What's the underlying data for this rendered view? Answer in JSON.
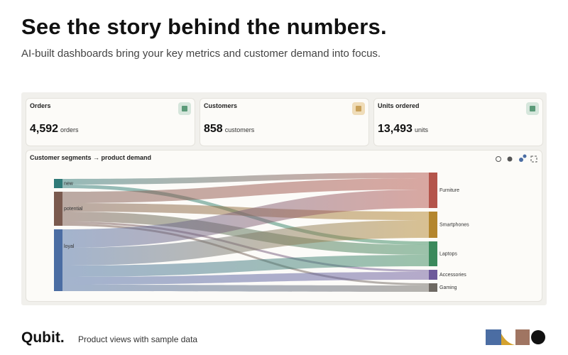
{
  "header": {
    "title": "See the story behind the numbers.",
    "subtitle": "AI-built dashboards bring your key metrics and customer demand into focus."
  },
  "metrics": [
    {
      "label": "Orders",
      "value": "4,592",
      "unit": "orders"
    },
    {
      "label": "Customers",
      "value": "858",
      "unit": "customers"
    },
    {
      "label": "Units ordered",
      "value": "13,493",
      "unit": "units"
    }
  ],
  "sankey": {
    "title": "Customer segments → product demand",
    "sources": [
      {
        "name": "new",
        "color": "#2f7a78"
      },
      {
        "name": "potential",
        "color": "#7a5a4f"
      },
      {
        "name": "loyal",
        "color": "#4b6da3"
      }
    ],
    "targets": [
      {
        "name": "Furniture",
        "color": "#b4544b"
      },
      {
        "name": "Smartphones",
        "color": "#b4862e"
      },
      {
        "name": "Laptops",
        "color": "#3b8a5d"
      },
      {
        "name": "Accessories",
        "color": "#6d5a9b"
      },
      {
        "name": "Gaming",
        "color": "#6e6963"
      }
    ],
    "links": [
      {
        "source": "new",
        "target": "Furniture",
        "value": 8
      },
      {
        "source": "new",
        "target": "Laptops",
        "value": 5
      },
      {
        "source": "potential",
        "target": "Furniture",
        "value": 16
      },
      {
        "source": "potential",
        "target": "Smartphones",
        "value": 12
      },
      {
        "source": "potential",
        "target": "Laptops",
        "value": 14
      },
      {
        "source": "potential",
        "target": "Accessories",
        "value": 3
      },
      {
        "source": "potential",
        "target": "Gaming",
        "value": 3
      },
      {
        "source": "loyal",
        "target": "Furniture",
        "value": 26
      },
      {
        "source": "loyal",
        "target": "Smartphones",
        "value": 25
      },
      {
        "source": "loyal",
        "target": "Laptops",
        "value": 16
      },
      {
        "source": "loyal",
        "target": "Accessories",
        "value": 11
      },
      {
        "source": "loyal",
        "target": "Gaming",
        "value": 9
      }
    ]
  },
  "footer": {
    "brand": "Qubit.",
    "caption": "Product views with sample data"
  }
}
